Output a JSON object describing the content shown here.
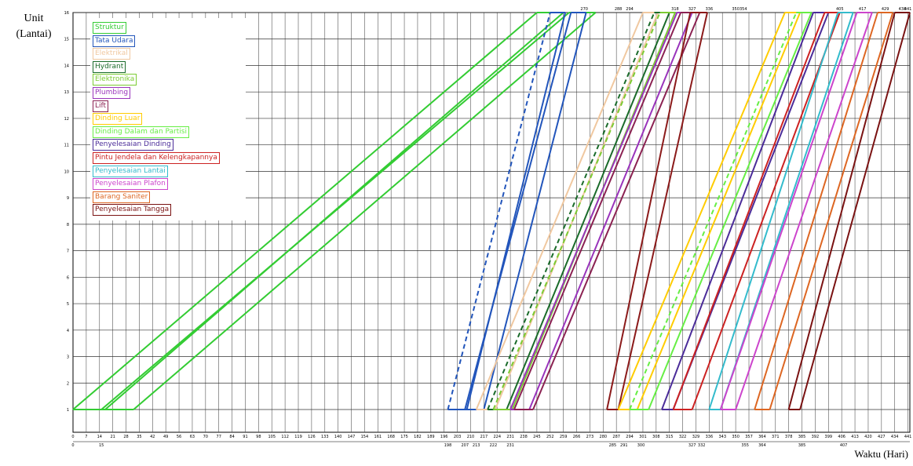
{
  "chart_data": {
    "type": "line",
    "ylabel": "Unit\n(Lantai)",
    "xlabel": "Waktu (Hari)",
    "xlim": [
      0,
      442
    ],
    "ylim": [
      0,
      16
    ],
    "grid": true,
    "legend_position": "top-left",
    "y_ticks": [
      "1",
      "2",
      "3",
      "4",
      "5",
      "6",
      "7",
      "8",
      "9",
      "10",
      "11",
      "12",
      "13",
      "14",
      "15",
      "16"
    ],
    "x_ticks": [
      "0",
      "7",
      "14",
      "21",
      "28",
      "35",
      "42",
      "49",
      "56",
      "63",
      "70",
      "77",
      "84",
      "91",
      "98",
      "105",
      "112",
      "119",
      "126",
      "133",
      "140",
      "147",
      "154",
      "161",
      "168",
      "175",
      "182",
      "189",
      "196",
      "203",
      "210",
      "217",
      "224",
      "231",
      "238",
      "245",
      "252",
      "259",
      "266",
      "273",
      "280",
      "287",
      "294",
      "301",
      "308",
      "315",
      "322",
      "329",
      "336",
      "343",
      "350",
      "357",
      "364",
      "371",
      "378",
      "385",
      "392",
      "399",
      "406",
      "413",
      "420",
      "427",
      "434",
      "441"
    ],
    "start_labels": [
      "0",
      "15",
      "198",
      "207",
      "213",
      "222",
      "231",
      "285",
      "291",
      "300",
      "327",
      "332",
      "355",
      "364",
      "385",
      "407"
    ],
    "finish_labels": [
      "270",
      "288",
      "294",
      "318",
      "327",
      "336",
      "350",
      "354",
      "405",
      "417",
      "429",
      "438",
      "441"
    ],
    "series": [
      {
        "name": "Struktur",
        "color": "#33cc33",
        "dashed": false,
        "bottom": [
          0,
          17
        ],
        "top": [
          245,
          259
        ]
      },
      {
        "name": "Struktur",
        "color": "#33cc33",
        "dashed": false,
        "bottom": [
          15,
          32
        ],
        "top": [
          262,
          276
        ]
      },
      {
        "name": "Tata Udara",
        "color": "#2255bb",
        "dashed": true,
        "bottom": [
          198,
          208
        ],
        "top": [
          252,
          260
        ]
      },
      {
        "name": "Tata Udara",
        "color": "#2255bb",
        "dashed": false,
        "bottom": [
          207,
          217
        ],
        "top": [
          263,
          271
        ]
      },
      {
        "name": "Elektrikal",
        "color": "#f0c8a0",
        "dashed": false,
        "bottom": [
          213,
          223
        ],
        "top": [
          301,
          309
        ]
      },
      {
        "name": "Hydrant",
        "color": "#1a6b2a",
        "dashed": true,
        "bottom": [
          219,
          229
        ],
        "top": [
          307,
          315
        ]
      },
      {
        "name": "Elektronika",
        "color": "#7ccb33",
        "dashed": true,
        "bottom": [
          222,
          232
        ],
        "top": [
          310,
          318
        ]
      },
      {
        "name": "Plumbing",
        "color": "#9933bb",
        "dashed": false,
        "bottom": [
          231,
          241
        ],
        "top": [
          319,
          327
        ]
      },
      {
        "name": "Lift",
        "color": "#8b2252",
        "dashed": false,
        "bottom": [
          233,
          243
        ],
        "top": [
          321,
          331
        ]
      },
      {
        "name": "Penyelesaian Tangga",
        "color": "#8b1a1a",
        "dashed": false,
        "bottom": [
          282,
          288
        ],
        "top": [
          326,
          335
        ]
      },
      {
        "name": "Dinding Luar",
        "color": "#ffcc00",
        "dashed": false,
        "bottom": [
          288,
          298
        ],
        "top": [
          376,
          384
        ]
      },
      {
        "name": "Dinding Dalam dan Partisi",
        "color": "#66ee44",
        "dashed": true,
        "bottom": [
          294,
          304
        ],
        "top": [
          382,
          390
        ]
      },
      {
        "name": "Penyelesaian Dinding",
        "color": "#4b2c99",
        "dashed": false,
        "bottom": [
          311,
          317
        ],
        "top": [
          391,
          399
        ]
      },
      {
        "name": "Pintu Jendela dan Kelengkapannya",
        "color": "#cc2222",
        "dashed": false,
        "bottom": [
          317,
          327
        ],
        "top": [
          397,
          405
        ]
      },
      {
        "name": "Penyelesaian Lantai",
        "color": "#33bbcc",
        "dashed": false,
        "bottom": [
          336,
          342
        ],
        "top": [
          404,
          412
        ]
      },
      {
        "name": "Penyelesaian Plafon",
        "color": "#cc44cc",
        "dashed": false,
        "bottom": [
          342,
          350
        ],
        "top": [
          414,
          422
        ]
      },
      {
        "name": "Barang Saniter",
        "color": "#dd6622",
        "dashed": false,
        "bottom": [
          360,
          368
        ],
        "top": [
          425,
          433
        ]
      },
      {
        "name": "Penyelesaian Tangga",
        "color": "#7a1212",
        "dashed": false,
        "bottom": [
          378,
          384
        ],
        "top": [
          434,
          442
        ]
      }
    ]
  },
  "legend": [
    {
      "label": "Struktur",
      "color": "#33cc33"
    },
    {
      "label": "Tata Udara",
      "color": "#2255bb"
    },
    {
      "label": "Elektrikal",
      "color": "#f0c8a0"
    },
    {
      "label": "Hydrant",
      "color": "#1a6b2a"
    },
    {
      "label": "Elektronika",
      "color": "#7ccb33"
    },
    {
      "label": "Plumbing",
      "color": "#9933bb"
    },
    {
      "label": "Lift",
      "color": "#8b2252"
    },
    {
      "label": "Dinding Luar",
      "color": "#ffcc00"
    },
    {
      "label": "Dinding Dalam dan Partisi",
      "color": "#66ee44"
    },
    {
      "label": "Penyelesaian Dinding",
      "color": "#4b2c99"
    },
    {
      "label": "Pintu Jendela dan Kelengkapannya",
      "color": "#cc2222"
    },
    {
      "label": "Penyelesaian Lantai",
      "color": "#33bbcc"
    },
    {
      "label": "Penyelesaian Plafon",
      "color": "#cc44cc"
    },
    {
      "label": "Barang Saniter",
      "color": "#dd6622"
    },
    {
      "label": "Penyelesaian Tangga",
      "color": "#7a1212"
    }
  ]
}
